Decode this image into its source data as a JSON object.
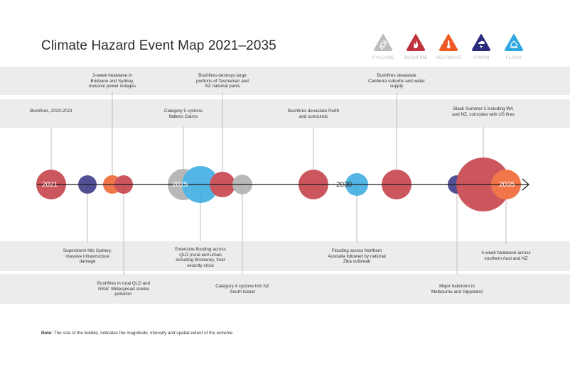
{
  "title": "Climate Hazard Event Map 2021–2035",
  "legend": [
    {
      "label": "CYCLONE",
      "color": "#a9a9a9",
      "icon": "cyclone-icon"
    },
    {
      "label": "BUSHFIRE",
      "color": "#c0323b",
      "icon": "bushfire-icon"
    },
    {
      "label": "HEATWAVE",
      "color": "#ef5a24",
      "icon": "heatwave-icon"
    },
    {
      "label": "STORM",
      "color": "#2a2c7e",
      "icon": "storm-icon"
    },
    {
      "label": "FLOOD",
      "color": "#2ea6df",
      "icon": "flood-icon"
    }
  ],
  "year_labels": [
    "2021",
    "2025",
    "2030",
    "2035"
  ],
  "events": [
    {
      "type": "bushfire",
      "color": "#c0323b",
      "text": "Bushfires, 2020-2021"
    },
    {
      "type": "storm",
      "color": "#2a2c7e",
      "text": "Superstorm hits Sydney, massive infrastructure damage"
    },
    {
      "type": "heatwave",
      "color": "#ef5a24",
      "text": "3-week heatwave in Brisbane and Sydney, massive power outages"
    },
    {
      "type": "bushfire",
      "color": "#c0323b",
      "text": "Bushfires in rural QLD and NSW. Widespread smoke pollution."
    },
    {
      "type": "cyclone",
      "color": "#a9a9a9",
      "text": "Category 5 cyclone flattens Cairns"
    },
    {
      "type": "flood",
      "color": "#2ea6df",
      "text": "Extensive flooding across QLD (rural and urban including Brisbane), food security crisis"
    },
    {
      "type": "bushfire",
      "color": "#c0323b",
      "text": "Bushfires destroys large portions of Tasmanian and NZ national parks"
    },
    {
      "type": "cyclone",
      "color": "#a9a9a9",
      "text": "Category 4 cyclone hits NZ South Island"
    },
    {
      "type": "bushfire",
      "color": "#c0323b",
      "text": "Bushfires devastate Perth and surrounds"
    },
    {
      "type": "flood",
      "color": "#2ea6df",
      "text": "Flooding across Northern Australia followed by national Zika outbreak"
    },
    {
      "type": "bushfire",
      "color": "#c0323b",
      "text": "Bushfires devastate Canberra suburbs and water supply"
    },
    {
      "type": "storm",
      "color": "#2a2c7e",
      "text": "Major hailstorm in Melbourne and Gippsland"
    },
    {
      "type": "bushfire",
      "color": "#c0323b",
      "text": "Black Summer 2 including WA and NZ, coincides with US fires"
    },
    {
      "type": "heatwave",
      "color": "#ef5a24",
      "text": "4-week heatwave across southern Aust and NZ"
    }
  ],
  "note": {
    "label": "Note:",
    "text": "The size of the bubble, indicates the magnitude, intensity and spatial extent of the extreme"
  }
}
